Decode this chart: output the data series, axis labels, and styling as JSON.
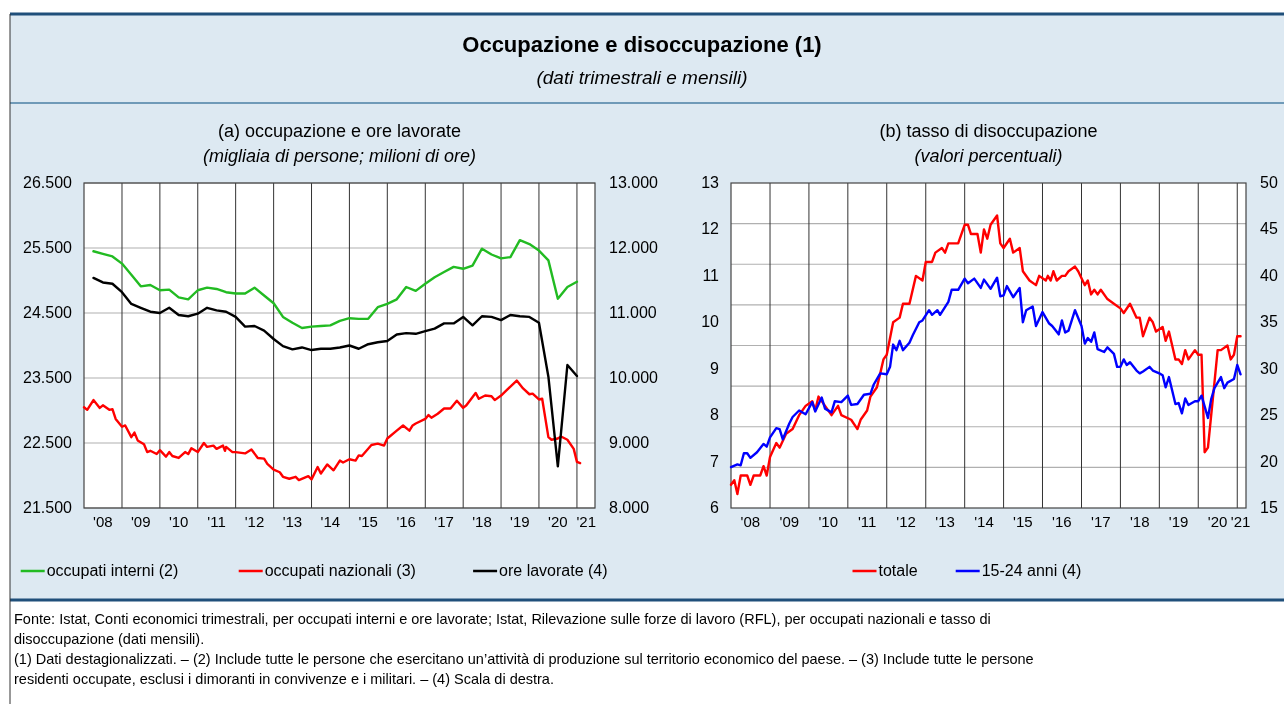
{
  "chart_data": [
    {
      "type": "other",
      "title": "Occupazione e disoccupazione (1)",
      "subtitle": "(dati trimestrali e mensili)",
      "annotations": [
        "Fonte: Istat, Conti economici trimestrali, per occupati interni e ore lavorate; Istat, Rilevazione sulle forze di lavoro (RFL), per occupati nazionali e tasso di disoccupazione (dati mensili).",
        "(1) Dati destagionalizzati. – (2) Include tutte le persone che esercitano un’attività di produzione sul territorio economico del paese. – (3) Include tutte le persone residenti occupate, esclusi i dimoranti in convivenze e i militari. – (4) Scala di destra."
      ]
    },
    {
      "type": "line",
      "title": "(a) occupazione e ore lavorate",
      "subtitle": "(migliaia di persone; milioni di ore)",
      "grid": true,
      "legend": "bottom",
      "xlim": [
        "2008-01",
        "2021-06-24"
      ],
      "xticks": [
        {
          "value": "2008-07",
          "label": "'08"
        },
        {
          "value": "2009-07",
          "label": "'09"
        },
        {
          "value": "2010-07",
          "label": "'10"
        },
        {
          "value": "2011-07",
          "label": "'11"
        },
        {
          "value": "2012-07",
          "label": "'12"
        },
        {
          "value": "2013-07",
          "label": "'13"
        },
        {
          "value": "2014-07",
          "label": "'14"
        },
        {
          "value": "2015-07",
          "label": "'15"
        },
        {
          "value": "2016-07",
          "label": "'16"
        },
        {
          "value": "2017-07",
          "label": "'17"
        },
        {
          "value": "2018-07",
          "label": "'18"
        },
        {
          "value": "2019-07",
          "label": "'19"
        },
        {
          "value": "2020-07",
          "label": "'20"
        },
        {
          "value": "2021-04",
          "label": "'21"
        },
        {
          "value": "2009-01",
          "label": null
        },
        {
          "value": "2010-01",
          "label": null
        },
        {
          "value": "2011-01",
          "label": null
        },
        {
          "value": "2012-01",
          "label": null
        },
        {
          "value": "2013-01",
          "label": null
        },
        {
          "value": "2014-01",
          "label": null
        },
        {
          "value": "2015-01",
          "label": null
        },
        {
          "value": "2016-01",
          "label": null
        },
        {
          "value": "2017-01",
          "label": null
        },
        {
          "value": "2018-01",
          "label": null
        },
        {
          "value": "2019-01",
          "label": null
        },
        {
          "value": "2020-01",
          "label": null
        },
        {
          "value": "2021-01",
          "label": null
        }
      ],
      "ylim": [
        21500,
        26500
      ],
      "yticks": [
        {
          "value": 21500,
          "label": "21.500"
        },
        {
          "value": 22500,
          "label": "22.500"
        },
        {
          "value": 23500,
          "label": "23.500"
        },
        {
          "value": 24500,
          "label": "24.500"
        },
        {
          "value": 25500,
          "label": "25.500"
        },
        {
          "value": 26500,
          "label": "26.500"
        }
      ],
      "y2lim": [
        8000,
        13000
      ],
      "y2ticks": [
        {
          "value": 8000,
          "label": "8.000"
        },
        {
          "value": 9000,
          "label": "9.000"
        },
        {
          "value": 10000,
          "label": "10.000"
        },
        {
          "value": 11000,
          "label": "11.000"
        },
        {
          "value": 12000,
          "label": "12.000"
        },
        {
          "value": 13000,
          "label": "13.000"
        }
      ],
      "x": [
        "2008-04",
        "2008-07",
        "2008-10",
        "2009-01",
        "2009-04",
        "2009-07",
        "2009-10",
        "2010-01",
        "2010-04",
        "2010-07",
        "2010-10",
        "2011-01",
        "2011-04",
        "2011-07",
        "2011-10",
        "2012-01",
        "2012-04",
        "2012-07",
        "2012-10",
        "2013-01",
        "2013-04",
        "2013-07",
        "2013-10",
        "2014-01",
        "2014-04",
        "2014-07",
        "2014-10",
        "2015-01",
        "2015-04",
        "2015-07",
        "2015-10",
        "2016-01",
        "2016-04",
        "2016-07",
        "2016-10",
        "2017-01",
        "2017-04",
        "2017-07",
        "2017-10",
        "2018-01",
        "2018-04",
        "2018-07",
        "2018-10",
        "2019-01",
        "2019-04",
        "2019-07",
        "2019-10",
        "2020-01",
        "2020-04",
        "2020-07",
        "2020-10",
        "2021-01"
      ],
      "series": [
        {
          "name": "occupati interni (2)",
          "color": "#22bb22",
          "values": [
            25450,
            25410,
            25370,
            25260,
            25090,
            24910,
            24930,
            24850,
            24860,
            24740,
            24710,
            24850,
            24890,
            24870,
            24820,
            24800,
            24800,
            24890,
            24770,
            24650,
            24440,
            24350,
            24270,
            24290,
            24300,
            24310,
            24380,
            24420,
            24410,
            24410,
            24590,
            24640,
            24710,
            24900,
            24840,
            24950,
            25050,
            25130,
            25210,
            25180,
            25230,
            25490,
            25400,
            25340,
            25360,
            25620,
            25560,
            25460,
            25310,
            24720,
            24900,
            24980
          ]
        },
        {
          "name": "occupati nazionali (3)",
          "color": "#ff0000",
          "x": [
            "2008-01",
            "2008-02",
            "2008-04",
            "2008-06",
            "2008-07",
            "2008-09",
            "2008-10",
            "2008-11",
            "2009-01",
            "2009-02",
            "2009-04",
            "2009-05",
            "2009-06",
            "2009-08",
            "2009-09",
            "2009-10",
            "2009-12",
            "2010-01",
            "2010-03",
            "2010-04",
            "2010-05",
            "2010-07",
            "2010-09",
            "2010-10",
            "2010-11",
            "2011-01",
            "2011-03",
            "2011-04",
            "2011-06",
            "2011-07",
            "2011-09",
            "2011-09-20",
            "2011-10",
            "2011-12",
            "2012-01",
            "2012-04",
            "2012-06",
            "2012-08",
            "2012-10",
            "2012-11",
            "2013-01",
            "2013-03",
            "2013-04",
            "2013-06",
            "2013-08",
            "2013-09",
            "2013-12",
            "2014-01",
            "2014-03",
            "2014-04",
            "2014-06",
            "2014-08",
            "2014-10",
            "2014-11",
            "2015-01",
            "2015-03",
            "2015-04",
            "2015-05",
            "2015-08",
            "2015-10",
            "2015-12",
            "2016-01",
            "2016-04",
            "2016-06",
            "2016-08",
            "2016-09",
            "2016-10",
            "2017-01",
            "2017-02",
            "2017-03",
            "2017-05",
            "2017-07",
            "2017-09",
            "2017-11",
            "2018-01",
            "2018-02",
            "2018-05",
            "2018-06",
            "2018-08",
            "2018-10",
            "2018-11",
            "2019-01",
            "2019-03",
            "2019-06",
            "2019-08",
            "2019-10",
            "2019-11",
            "2020-01",
            "2020-02",
            "2020-04",
            "2020-05",
            "2020-07",
            "2020-08",
            "2020-10",
            "2020-12",
            "2021-01",
            "2021-02"
          ],
          "values": [
            23050,
            23010,
            23160,
            23040,
            23080,
            23010,
            23020,
            22870,
            22750,
            22770,
            22590,
            22660,
            22540,
            22480,
            22360,
            22380,
            22330,
            22390,
            22290,
            22360,
            22300,
            22270,
            22360,
            22330,
            22420,
            22360,
            22500,
            22440,
            22460,
            22410,
            22460,
            22380,
            22440,
            22360,
            22360,
            22340,
            22400,
            22270,
            22260,
            22180,
            22090,
            22050,
            21980,
            21950,
            21980,
            21930,
            21990,
            21940,
            22130,
            22030,
            22170,
            22080,
            22230,
            22200,
            22250,
            22230,
            22310,
            22300,
            22470,
            22490,
            22460,
            22570,
            22690,
            22770,
            22690,
            22770,
            22800,
            22870,
            22930,
            22890,
            22950,
            23030,
            23030,
            23150,
            23040,
            23080,
            23270,
            23180,
            23230,
            23220,
            23160,
            23230,
            23320,
            23460,
            23340,
            23250,
            23260,
            23170,
            23180,
            22590,
            22550,
            22570,
            22600,
            22550,
            22410,
            22210,
            22190
          ]
        },
        {
          "name": "ore lavorate (4)",
          "color": "#000000",
          "axis": "y2",
          "values": [
            11540,
            11470,
            11450,
            11320,
            11140,
            11080,
            11020,
            11000,
            11080,
            10970,
            10950,
            10990,
            11080,
            11040,
            11020,
            10940,
            10790,
            10800,
            10730,
            10600,
            10490,
            10440,
            10470,
            10430,
            10450,
            10450,
            10470,
            10500,
            10450,
            10520,
            10550,
            10570,
            10670,
            10690,
            10680,
            10720,
            10760,
            10840,
            10840,
            10940,
            10810,
            10950,
            10940,
            10890,
            10970,
            10950,
            10940,
            10850,
            10020,
            8640,
            10200,
            10030
          ]
        }
      ]
    },
    {
      "type": "line",
      "title": "(b) tasso di disoccupazione",
      "subtitle": "(valori percentuali)",
      "grid": true,
      "legend": "bottom",
      "xlim": [
        "2008-01",
        "2021-03-24"
      ],
      "xticks": [
        {
          "value": "2008-07",
          "label": "'08"
        },
        {
          "value": "2009-07",
          "label": "'09"
        },
        {
          "value": "2010-07",
          "label": "'10"
        },
        {
          "value": "2011-07",
          "label": "'11"
        },
        {
          "value": "2012-07",
          "label": "'12"
        },
        {
          "value": "2013-07",
          "label": "'13"
        },
        {
          "value": "2014-07",
          "label": "'14"
        },
        {
          "value": "2015-07",
          "label": "'15"
        },
        {
          "value": "2016-07",
          "label": "'16"
        },
        {
          "value": "2017-07",
          "label": "'17"
        },
        {
          "value": "2018-07",
          "label": "'18"
        },
        {
          "value": "2019-07",
          "label": "'19"
        },
        {
          "value": "2020-07",
          "label": "'20"
        },
        {
          "value": "2021-02",
          "label": "'21"
        },
        {
          "value": "2009-01",
          "label": null
        },
        {
          "value": "2010-01",
          "label": null
        },
        {
          "value": "2011-01",
          "label": null
        },
        {
          "value": "2012-01",
          "label": null
        },
        {
          "value": "2013-01",
          "label": null
        },
        {
          "value": "2014-01",
          "label": null
        },
        {
          "value": "2015-01",
          "label": null
        },
        {
          "value": "2016-01",
          "label": null
        },
        {
          "value": "2017-01",
          "label": null
        },
        {
          "value": "2018-01",
          "label": null
        },
        {
          "value": "2019-01",
          "label": null
        },
        {
          "value": "2020-01",
          "label": null
        },
        {
          "value": "2021-01",
          "label": null
        }
      ],
      "ylim": [
        6,
        13
      ],
      "yticks": [
        6,
        7,
        8,
        9,
        10,
        11,
        12,
        13,
        {
          "value": 6.875,
          "label": null
        },
        {
          "value": 7.75,
          "label": null
        },
        {
          "value": 8.625,
          "label": null
        },
        {
          "value": 9.5,
          "label": null
        },
        {
          "value": 10.375,
          "label": null
        },
        {
          "value": 11.25,
          "label": null
        },
        {
          "value": 12.125,
          "label": null
        }
      ],
      "y2lim": [
        15,
        50
      ],
      "y2ticks": [
        15,
        20,
        25,
        30,
        35,
        40,
        45,
        50
      ],
      "series": [
        {
          "name": "totale",
          "color": "#ff0000",
          "x": [
            "2008-01",
            "2008-02",
            "2008-03",
            "2008-04",
            "2008-06",
            "2008-07",
            "2008-08",
            "2008-10",
            "2008-11",
            "2008-12",
            "2009-01",
            "2009-03",
            "2009-04",
            "2009-06",
            "2009-08",
            "2009-10",
            "2009-12",
            "2010-02",
            "2010-03",
            "2010-04",
            "2010-06",
            "2010-08",
            "2010-10",
            "2010-11",
            "2011-02",
            "2011-04",
            "2011-05",
            "2011-07",
            "2011-08",
            "2011-10",
            "2011-11",
            "2011-12",
            "2012-01",
            "2012-03",
            "2012-05",
            "2012-06",
            "2012-08",
            "2012-10",
            "2012-12",
            "2013-01",
            "2013-03",
            "2013-04",
            "2013-06",
            "2013-07",
            "2013-08",
            "2013-10",
            "2013-11",
            "2014-01",
            "2014-02",
            "2014-03",
            "2014-05",
            "2014-06",
            "2014-07",
            "2014-08",
            "2014-09",
            "2014-11",
            "2014-12",
            "2015-01",
            "2015-03",
            "2015-04",
            "2015-06",
            "2015-07",
            "2015-09",
            "2015-11",
            "2015-12",
            "2016-02",
            "2016-02-20",
            "2016-03-18",
            "2016-04-12",
            "2016-05-14",
            "2016-07",
            "2016-08",
            "2016-09",
            "2016-11",
            "2016-12",
            "2017-02",
            "2017-03",
            "2017-04",
            "2017-05",
            "2017-06",
            "2017-07",
            "2017-09",
            "2017-11",
            "2018-01",
            "2018-02",
            "2018-04",
            "2018-06",
            "2018-07",
            "2018-08",
            "2018-10",
            "2018-11",
            "2018-12",
            "2019-02",
            "2019-03",
            "2019-04",
            "2019-06",
            "2019-07",
            "2019-08",
            "2019-09",
            "2019-10",
            "2019-12",
            "2020-01",
            "2020-02",
            "2020-03",
            "2020-04",
            "2020-06",
            "2020-07",
            "2020-08",
            "2020-10",
            "2020-11",
            "2020-12",
            "2021-01",
            "2021-02"
          ],
          "values": [
            6.5,
            6.6,
            6.3,
            6.7,
            6.7,
            6.5,
            6.7,
            6.7,
            6.9,
            6.7,
            7.1,
            7.4,
            7.3,
            7.6,
            7.7,
            8,
            8.2,
            8.3,
            8.1,
            8.4,
            8.2,
            8,
            8.2,
            8,
            7.9,
            7.7,
            7.9,
            8.1,
            8.4,
            8.6,
            8.9,
            9.2,
            9.3,
            10,
            10.1,
            10.4,
            10.4,
            11,
            10.9,
            11.3,
            11.3,
            11.5,
            11.6,
            11.5,
            11.7,
            11.7,
            11.7,
            12.1,
            12.1,
            11.9,
            11.9,
            11.5,
            12,
            11.8,
            12.1,
            12.3,
            11.7,
            11.6,
            11.8,
            11.5,
            11.6,
            11.1,
            10.9,
            10.8,
            11,
            10.9,
            11,
            10.9,
            11.1,
            10.9,
            11,
            11,
            11.1,
            11.2,
            11.1,
            10.8,
            10.9,
            10.6,
            10.7,
            10.6,
            10.7,
            10.5,
            10.4,
            10.3,
            10.2,
            10.4,
            10.1,
            10.1,
            9.7,
            10.1,
            10,
            9.8,
            9.9,
            9.6,
            9.8,
            9.2,
            9.2,
            9.1,
            9.4,
            9.2,
            9.4,
            9.3,
            9.3,
            7.2,
            7.3,
            8.7,
            9.4,
            9.4,
            9.5,
            9.2,
            9.3,
            9.7,
            9.7
          ]
        },
        {
          "name": "15-24 anni (4)",
          "color": "#0000ff",
          "axis": "y2",
          "x": [
            "2008-01",
            "2008-03",
            "2008-04",
            "2008-05",
            "2008-06",
            "2008-07",
            "2008-09",
            "2008-11",
            "2008-12",
            "2009-01",
            "2009-03",
            "2009-04",
            "2009-05",
            "2009-07",
            "2009-08",
            "2009-10",
            "2009-12",
            "2010-02",
            "2010-03",
            "2010-05",
            "2010-06",
            "2010-08",
            "2010-09",
            "2010-11",
            "2011-01",
            "2011-02",
            "2011-04",
            "2011-06",
            "2011-08",
            "2011-09",
            "2011-11",
            "2012-01",
            "2012-02",
            "2012-03",
            "2012-04",
            "2012-05",
            "2012-06",
            "2012-08",
            "2012-09",
            "2012-11",
            "2012-12",
            "2013-02",
            "2013-03",
            "2013-04-20",
            "2013-05-15",
            "2013-08",
            "2013-09",
            "2013-11",
            "2014-01",
            "2014-02",
            "2014-04",
            "2014-06",
            "2014-07",
            "2014-09",
            "2014-11",
            "2014-12",
            "2015-01",
            "2015-02",
            "2015-04",
            "2015-06",
            "2015-07",
            "2015-08",
            "2015-10",
            "2015-11",
            "2016-01",
            "2016-03",
            "2016-04",
            "2016-06",
            "2016-07",
            "2016-08",
            "2016-09",
            "2016-11",
            "2017-01",
            "2017-02",
            "2017-03",
            "2017-04",
            "2017-05",
            "2017-06",
            "2017-08",
            "2017-09",
            "2017-11",
            "2017-12",
            "2018-01",
            "2018-02",
            "2018-03",
            "2018-04",
            "2018-06",
            "2018-07",
            "2018-08",
            "2018-10",
            "2018-11",
            "2019-01",
            "2019-02",
            "2019-03",
            "2019-04",
            "2019-06",
            "2019-07",
            "2019-08",
            "2019-09",
            "2019-10",
            "2019-12",
            "2020-01",
            "2020-02",
            "2020-04",
            "2020-05",
            "2020-06",
            "2020-08",
            "2020-09",
            "2020-10",
            "2020-12",
            "2021-01",
            "2021-02"
          ],
          "values": [
            19.4,
            19.7,
            19.6,
            20.9,
            20.9,
            20.4,
            21,
            21.9,
            21.6,
            22.6,
            23.6,
            23.5,
            22.4,
            24.1,
            24.8,
            25.5,
            25.1,
            26.4,
            25.4,
            26.9,
            25.7,
            25.3,
            26.5,
            26.4,
            27.1,
            26.1,
            26.2,
            27.2,
            27.3,
            28.3,
            29.5,
            29.4,
            30.2,
            32.6,
            32,
            33,
            32,
            32.8,
            33.6,
            35,
            35.2,
            36.3,
            35.8,
            36.3,
            35.8,
            37.2,
            38.5,
            38.5,
            39.7,
            39.2,
            39.7,
            38.7,
            39.6,
            38.6,
            39.8,
            37.8,
            37.9,
            38.9,
            37.7,
            38.7,
            35,
            36.3,
            36.7,
            34.6,
            36.1,
            34.9,
            34.6,
            33.7,
            35.2,
            33.9,
            34.1,
            36.3,
            34.6,
            32.7,
            33.3,
            32.9,
            33.9,
            32.1,
            31.8,
            32.3,
            31.6,
            30.2,
            30.2,
            31,
            30.4,
            30.7,
            29.8,
            29.5,
            29.7,
            30.2,
            29.8,
            29.5,
            29.3,
            28,
            29.1,
            26.2,
            26.3,
            25.2,
            26.8,
            26.1,
            26.5,
            26.5,
            27.1,
            24.7,
            26.7,
            27.9,
            29.1,
            27.9,
            28.5,
            28.9,
            30.4,
            29.4
          ]
        }
      ]
    }
  ]
}
